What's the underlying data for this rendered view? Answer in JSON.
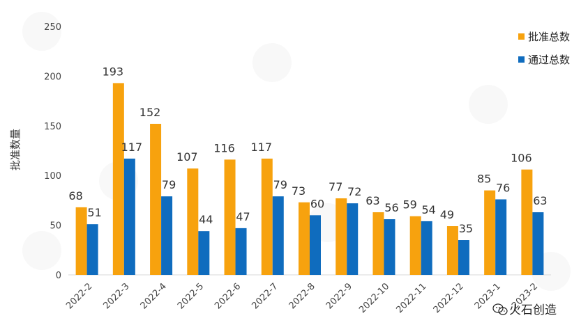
{
  "chart_data": {
    "type": "bar",
    "title": "",
    "xlabel": "",
    "ylabel": "批准数量",
    "ylim": [
      0,
      250
    ],
    "yticks": [
      0,
      50,
      100,
      150,
      200,
      250
    ],
    "grid": false,
    "legend_position": "top-right",
    "categories": [
      "2022-2",
      "2022-3",
      "2022-4",
      "2022-5",
      "2022-6",
      "2022-7",
      "2022-8",
      "2022-9",
      "2022-10",
      "2022-11",
      "2022-12",
      "2023-1",
      "2023-2"
    ],
    "series": [
      {
        "name": "批准总数",
        "color": "#F7A20E",
        "values": [
          68,
          193,
          152,
          107,
          116,
          117,
          73,
          77,
          63,
          59,
          49,
          85,
          106
        ]
      },
      {
        "name": "通过总数",
        "color": "#0F6CBE",
        "values": [
          51,
          117,
          79,
          44,
          47,
          79,
          60,
          72,
          56,
          54,
          35,
          76,
          63
        ]
      }
    ]
  },
  "watermark": {
    "text": "火石创造",
    "icon": "wechat-icon"
  }
}
